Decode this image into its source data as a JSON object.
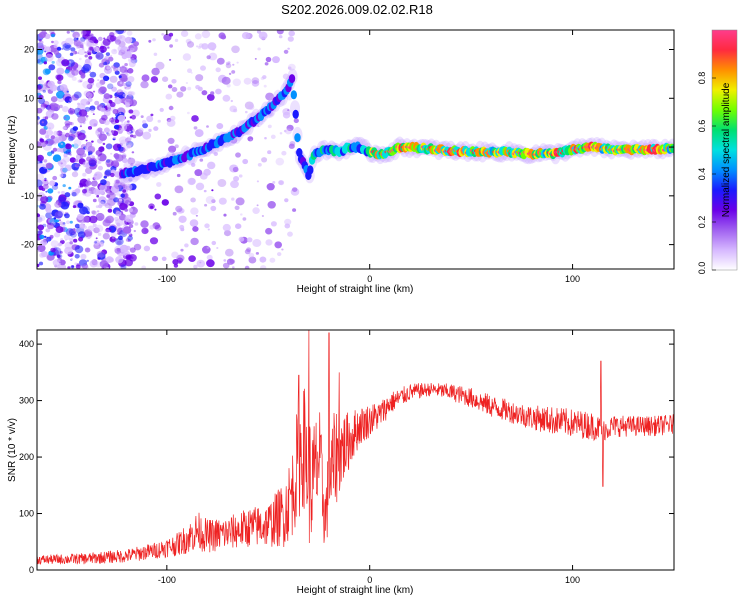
{
  "title": "S202.2026.009.02.02.R18",
  "colors": {
    "snr_line": "#ee2222",
    "axis": "#000000",
    "colormap": [
      "#ffffff",
      "#d6b8ff",
      "#a060f0",
      "#6a00e8",
      "#1a1aff",
      "#0090ff",
      "#00e0e0",
      "#00e070",
      "#70ff00",
      "#f0f000",
      "#ff9000",
      "#ff2a40",
      "#ff3c8c"
    ]
  },
  "chart_data": [
    {
      "type": "heatmap",
      "name": "spectrogram",
      "xlabel": "Height of straight line (km)",
      "ylabel": "Frequency (Hz)",
      "xlim": [
        -164,
        150
      ],
      "ylim": [
        -25,
        24
      ],
      "xticks": [
        -100,
        0,
        100
      ],
      "yticks": [
        20,
        10,
        0,
        -10,
        -20
      ],
      "ridge": {
        "x": [
          -122,
          -115,
          -105,
          -95,
          -85,
          -75,
          -65,
          -58,
          -52,
          -47,
          -42,
          -38,
          -35,
          -32,
          -30,
          -28,
          -25,
          -20,
          -15,
          -10,
          -5,
          0,
          5,
          10,
          15,
          20,
          40,
          60,
          70,
          80,
          85,
          90,
          95,
          100,
          110,
          115,
          120,
          140,
          150
        ],
        "y": [
          -5.5,
          -5,
          -4,
          -2.5,
          -1,
          1,
          3,
          5,
          7,
          9,
          11,
          14,
          -1,
          -4,
          -6,
          -2,
          -1,
          -0.5,
          -1,
          0,
          0,
          -1,
          -1.5,
          -1,
          0,
          0,
          -0.8,
          -1,
          -1,
          -1.5,
          -1.2,
          -1.5,
          -1,
          -0.5,
          0,
          -0.3,
          -0.5,
          -0.5,
          -0.2
        ]
      },
      "noise_region_x": [
        -164,
        -100
      ],
      "colorbar": {
        "label": "Normalized spectral amplitude",
        "range": [
          0.0,
          1.0
        ],
        "ticks": [
          "0.0",
          "0.2",
          "0.4",
          "0.6",
          "0.8"
        ]
      }
    },
    {
      "type": "line",
      "name": "snr",
      "xlabel": "Height of straight line (km)",
      "ylabel": "SNR (10 * v/v)",
      "xlim": [
        -164,
        150
      ],
      "ylim": [
        0,
        425
      ],
      "xticks": [
        -100,
        0,
        100
      ],
      "yticks": [
        0,
        100,
        200,
        300,
        400
      ],
      "envelope": {
        "x": [
          -164,
          -140,
          -120,
          -105,
          -95,
          -88,
          -85,
          -80,
          -70,
          -60,
          -50,
          -42,
          -38,
          -35,
          -32,
          -30,
          -28,
          -25,
          -22,
          -20,
          -17,
          -15,
          -12,
          -8,
          -5,
          0,
          5,
          10,
          20,
          30,
          40,
          50,
          60,
          70,
          80,
          90,
          100,
          110,
          115,
          120,
          130,
          140,
          150
        ],
        "mean": [
          18,
          20,
          25,
          35,
          45,
          60,
          70,
          60,
          65,
          75,
          80,
          100,
          140,
          200,
          220,
          160,
          150,
          200,
          90,
          150,
          200,
          210,
          220,
          240,
          255,
          265,
          275,
          295,
          315,
          320,
          315,
          305,
          290,
          280,
          270,
          265,
          260,
          255,
          248,
          255,
          255,
          255,
          258
        ],
        "amp": [
          8,
          10,
          12,
          15,
          20,
          30,
          35,
          30,
          30,
          35,
          40,
          60,
          80,
          110,
          110,
          120,
          110,
          100,
          60,
          80,
          90,
          80,
          60,
          45,
          35,
          30,
          25,
          20,
          15,
          12,
          15,
          18,
          20,
          20,
          22,
          25,
          25,
          25,
          20,
          20,
          18,
          18,
          18
        ]
      },
      "spikes": [
        {
          "x": -35,
          "y": 345
        },
        {
          "x": -30,
          "y": 425
        },
        {
          "x": -20,
          "y": 420
        },
        {
          "x": -15,
          "y": 350
        },
        {
          "x": 114,
          "y": 370
        },
        {
          "x": 115,
          "y": 148
        }
      ]
    }
  ]
}
